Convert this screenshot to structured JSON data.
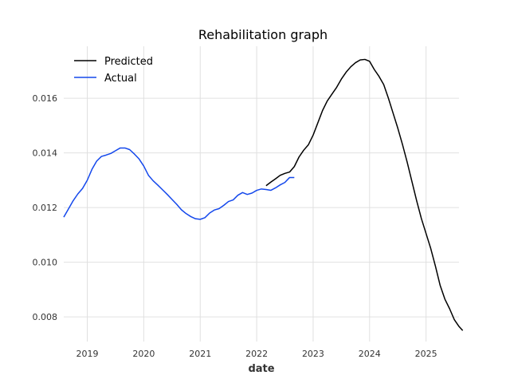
{
  "chart_data": {
    "type": "line",
    "title": "Rehabilitation graph",
    "xlabel": "date",
    "ylabel": "",
    "x_ticks": [
      "2019",
      "2020",
      "2021",
      "2022",
      "2023",
      "2024",
      "2025"
    ],
    "y_ticks": [
      "0.008",
      "0.010",
      "0.012",
      "0.014",
      "0.016"
    ],
    "xlim": [
      "2018-08-01",
      "2025-08-01"
    ],
    "ylim": [
      0.0071,
      0.0179
    ],
    "grid": true,
    "legend_position": "top-left",
    "series": [
      {
        "name": "Predicted",
        "color": "#000000",
        "points": [
          [
            "2022-03-01",
            0.0128
          ],
          [
            "2022-04-01",
            0.01293
          ],
          [
            "2022-05-01",
            0.01305
          ],
          [
            "2022-06-01",
            0.01318
          ],
          [
            "2022-07-01",
            0.01325
          ],
          [
            "2022-08-01",
            0.0133
          ],
          [
            "2022-09-01",
            0.0135
          ],
          [
            "2022-10-01",
            0.01385
          ],
          [
            "2022-11-01",
            0.0141
          ],
          [
            "2022-12-01",
            0.0143
          ],
          [
            "2023-01-01",
            0.01465
          ],
          [
            "2023-02-01",
            0.0151
          ],
          [
            "2023-03-01",
            0.01555
          ],
          [
            "2023-04-01",
            0.0159
          ],
          [
            "2023-05-01",
            0.01615
          ],
          [
            "2023-06-01",
            0.0164
          ],
          [
            "2023-07-01",
            0.0167
          ],
          [
            "2023-08-01",
            0.01695
          ],
          [
            "2023-09-01",
            0.01715
          ],
          [
            "2023-10-01",
            0.0173
          ],
          [
            "2023-11-01",
            0.0174
          ],
          [
            "2023-12-01",
            0.01742
          ],
          [
            "2024-01-01",
            0.01735
          ],
          [
            "2024-02-01",
            0.01705
          ],
          [
            "2024-03-01",
            0.0168
          ],
          [
            "2024-04-01",
            0.0165
          ],
          [
            "2024-05-01",
            0.016
          ],
          [
            "2024-06-01",
            0.01545
          ],
          [
            "2024-07-01",
            0.0149
          ],
          [
            "2024-08-01",
            0.0143
          ],
          [
            "2024-09-01",
            0.01365
          ],
          [
            "2024-10-01",
            0.01295
          ],
          [
            "2024-11-01",
            0.01225
          ],
          [
            "2024-12-01",
            0.0116
          ],
          [
            "2025-01-01",
            0.01105
          ],
          [
            "2025-02-01",
            0.0105
          ],
          [
            "2025-03-01",
            0.00985
          ],
          [
            "2025-04-01",
            0.00915
          ],
          [
            "2025-05-01",
            0.00865
          ],
          [
            "2025-06-01",
            0.0083
          ],
          [
            "2025-07-01",
            0.0079
          ],
          [
            "2025-08-01",
            0.00765
          ],
          [
            "2025-08-25",
            0.0075
          ]
        ]
      },
      {
        "name": "Actual",
        "color": "#1448ec",
        "points": [
          [
            "2018-08-01",
            0.01165
          ],
          [
            "2018-09-01",
            0.01195
          ],
          [
            "2018-10-01",
            0.01225
          ],
          [
            "2018-11-01",
            0.0125
          ],
          [
            "2018-12-01",
            0.0127
          ],
          [
            "2019-01-01",
            0.013
          ],
          [
            "2019-02-01",
            0.0134
          ],
          [
            "2019-03-01",
            0.0137
          ],
          [
            "2019-04-01",
            0.01387
          ],
          [
            "2019-05-01",
            0.01392
          ],
          [
            "2019-06-01",
            0.01398
          ],
          [
            "2019-07-01",
            0.01408
          ],
          [
            "2019-08-01",
            0.01418
          ],
          [
            "2019-09-01",
            0.01418
          ],
          [
            "2019-10-01",
            0.01412
          ],
          [
            "2019-11-01",
            0.01396
          ],
          [
            "2019-12-01",
            0.01378
          ],
          [
            "2020-01-01",
            0.01352
          ],
          [
            "2020-02-01",
            0.01318
          ],
          [
            "2020-03-01",
            0.01298
          ],
          [
            "2020-04-01",
            0.01282
          ],
          [
            "2020-05-01",
            0.01265
          ],
          [
            "2020-06-01",
            0.01248
          ],
          [
            "2020-07-01",
            0.0123
          ],
          [
            "2020-08-01",
            0.01212
          ],
          [
            "2020-09-01",
            0.01192
          ],
          [
            "2020-10-01",
            0.01178
          ],
          [
            "2020-11-01",
            0.01167
          ],
          [
            "2020-12-01",
            0.01159
          ],
          [
            "2021-01-01",
            0.01157
          ],
          [
            "2021-02-01",
            0.01163
          ],
          [
            "2021-03-01",
            0.0118
          ],
          [
            "2021-04-01",
            0.01191
          ],
          [
            "2021-05-01",
            0.01196
          ],
          [
            "2021-06-01",
            0.01208
          ],
          [
            "2021-07-01",
            0.01222
          ],
          [
            "2021-08-01",
            0.01228
          ],
          [
            "2021-09-01",
            0.01245
          ],
          [
            "2021-10-01",
            0.01255
          ],
          [
            "2021-11-01",
            0.01248
          ],
          [
            "2021-12-01",
            0.01253
          ],
          [
            "2022-01-01",
            0.01263
          ],
          [
            "2022-02-01",
            0.01268
          ],
          [
            "2022-03-01",
            0.01266
          ],
          [
            "2022-04-01",
            0.01263
          ],
          [
            "2022-05-01",
            0.01272
          ],
          [
            "2022-06-01",
            0.01283
          ],
          [
            "2022-07-01",
            0.01292
          ],
          [
            "2022-08-01",
            0.0131
          ],
          [
            "2022-09-01",
            0.0131
          ]
        ]
      }
    ]
  }
}
